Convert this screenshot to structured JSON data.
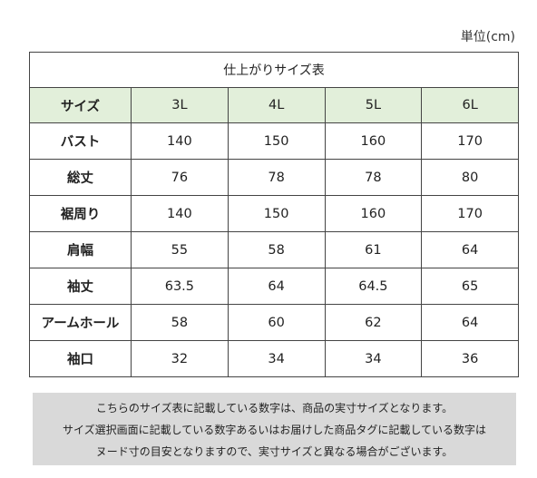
{
  "unit": "単位(cm)",
  "table": {
    "title": "仕上がりサイズ表",
    "header": {
      "label": "サイズ",
      "sizes": [
        "3L",
        "4L",
        "5L",
        "6L"
      ]
    },
    "rows": [
      {
        "label": "バスト",
        "values": [
          "140",
          "150",
          "160",
          "170"
        ]
      },
      {
        "label": "総丈",
        "values": [
          "76",
          "78",
          "78",
          "80"
        ]
      },
      {
        "label": "裾周り",
        "values": [
          "140",
          "150",
          "160",
          "170"
        ]
      },
      {
        "label": "肩幅",
        "values": [
          "55",
          "58",
          "61",
          "64"
        ]
      },
      {
        "label": "袖丈",
        "values": [
          "63.5",
          "64",
          "64.5",
          "65"
        ]
      },
      {
        "label": "アームホール",
        "values": [
          "58",
          "60",
          "62",
          "64"
        ]
      },
      {
        "label": "袖口",
        "values": [
          "32",
          "34",
          "34",
          "36"
        ]
      }
    ]
  },
  "notice": {
    "lines": [
      "こちらのサイズ表に記載している数字は、商品の実寸サイズとなります。",
      "サイズ選択画面に記載している数字あるいはお届けした商品タグに記載している数字は",
      "ヌード寸の目安となりますので、実寸サイズと異なる場合がございます。"
    ]
  },
  "colors": {
    "header_background": "#e2efda",
    "notice_background": "#d9d9d9",
    "border": "#444444"
  }
}
